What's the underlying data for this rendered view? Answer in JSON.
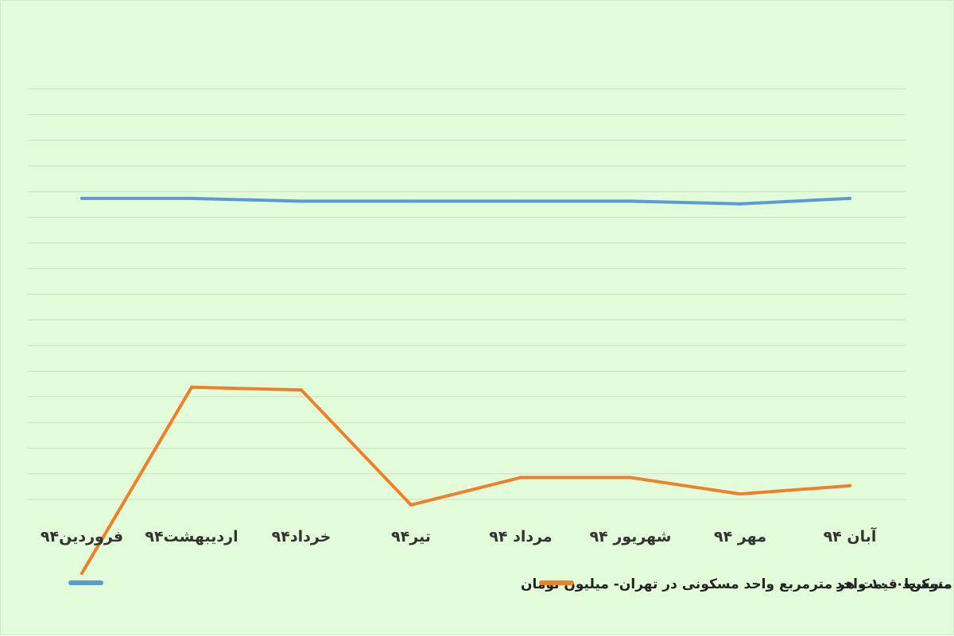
{
  "chart_data": {
    "type": "line",
    "categories": [
      "فروردین۹۴",
      "اردیبهشت۹۴",
      "خرداد۹۴",
      "تیر۹۴",
      "مرداد ۹۴",
      "شهریور ۹۴",
      "مهر ۹۴",
      "آبان ۹۴"
    ],
    "series": [
      {
        "name": "حجم معاملات خرید مسکن-۱۰۰۰ واحد",
        "color": "#f07f2a",
        "values": [
          17.7,
          10.9,
          11.0,
          15.2,
          14.2,
          14.2,
          14.8,
          14.5
        ]
      },
      {
        "name": "متوسط قیمت هر مترمربع واحد مسکونی در تهران- میلیون تومان",
        "color": "#5b9bd5",
        "values": [
          4.0,
          4.0,
          4.1,
          4.1,
          4.1,
          4.1,
          4.2,
          4.0
        ]
      }
    ],
    "ylim": [
      0,
      15
    ],
    "grid": true,
    "legend_position": "bottom",
    "background": "#e2fbd9"
  }
}
